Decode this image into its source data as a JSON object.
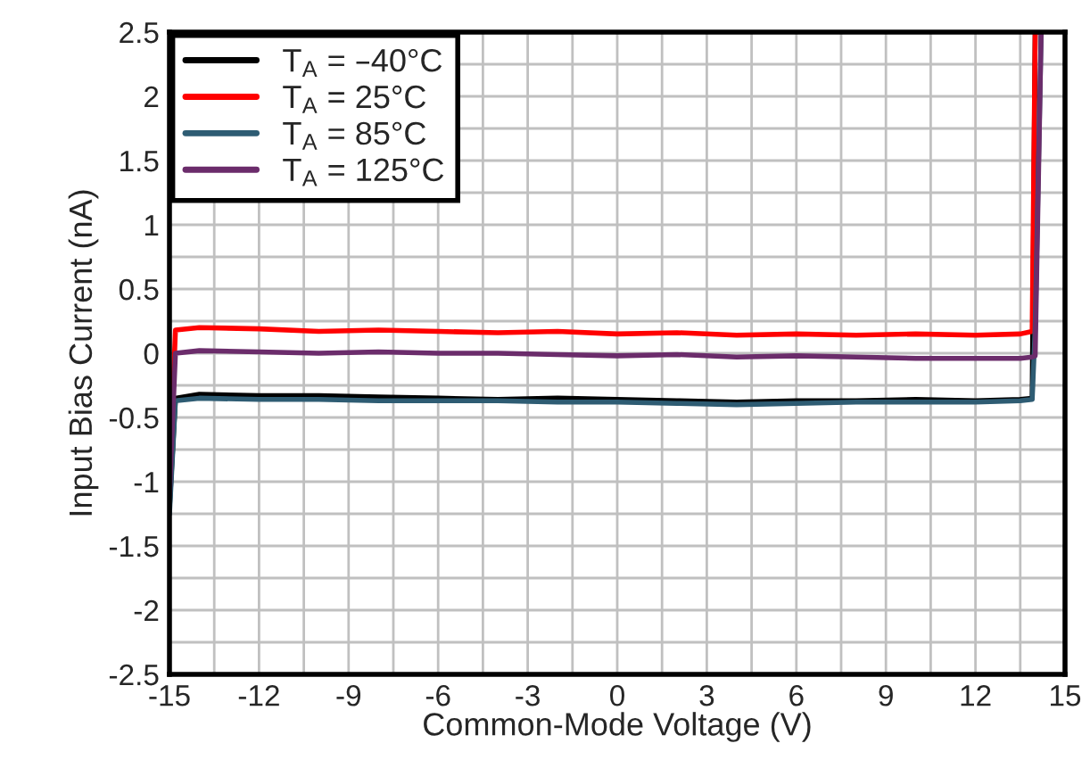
{
  "chart_data": {
    "type": "line",
    "xlabel": "Common-Mode Voltage (V)",
    "ylabel": "Input Bias Current (nA)",
    "x": [
      -15,
      -14.8,
      -14,
      -12,
      -10,
      -8,
      -6,
      -4,
      -2,
      0,
      2,
      4,
      6,
      8,
      10,
      12,
      13.5,
      13.9,
      14.0,
      14.2
    ],
    "series": [
      {
        "name": "T$_{A}$ = –40°C",
        "color": "#000000",
        "values": [
          -1.2,
          -0.35,
          -0.32,
          -0.33,
          -0.33,
          -0.34,
          -0.35,
          -0.36,
          -0.35,
          -0.36,
          -0.37,
          -0.38,
          -0.37,
          -0.37,
          -0.36,
          -0.37,
          -0.36,
          -0.35,
          2.5,
          2.5
        ]
      },
      {
        "name": "T$_{A}$ = 25°C",
        "color": "#ff0000",
        "values": [
          -1.0,
          0.18,
          0.2,
          0.19,
          0.17,
          0.18,
          0.17,
          0.16,
          0.17,
          0.15,
          0.16,
          0.14,
          0.15,
          0.14,
          0.15,
          0.14,
          0.15,
          0.17,
          2.5,
          2.5
        ]
      },
      {
        "name": "T$_{A}$ = 85°C",
        "color": "#2e5c73",
        "values": [
          -1.25,
          -0.37,
          -0.35,
          -0.36,
          -0.36,
          -0.37,
          -0.37,
          -0.37,
          -0.38,
          -0.38,
          -0.39,
          -0.4,
          -0.39,
          -0.38,
          -0.38,
          -0.38,
          -0.37,
          -0.36,
          0.2,
          2.5
        ]
      },
      {
        "name": "T$_{A}$ = 125°C",
        "color": "#6b2c6b",
        "values": [
          -1.1,
          0.0,
          0.02,
          0.01,
          0.0,
          0.01,
          0.0,
          0.0,
          -0.01,
          -0.02,
          -0.01,
          -0.03,
          -0.02,
          -0.03,
          -0.04,
          -0.04,
          -0.04,
          -0.03,
          -0.02,
          2.5
        ]
      }
    ],
    "xlim": [
      -15,
      15
    ],
    "ylim": [
      -2.5,
      2.5
    ],
    "xticks": [
      {
        "value": -15,
        "label": "-15"
      },
      {
        "value": -13.5,
        "label": null
      },
      {
        "value": -12,
        "label": "-12"
      },
      {
        "value": -10.5,
        "label": null
      },
      {
        "value": -9,
        "label": "-9"
      },
      {
        "value": -7.5,
        "label": null
      },
      {
        "value": -6,
        "label": "-6"
      },
      {
        "value": -4.5,
        "label": null
      },
      {
        "value": -3,
        "label": "-3"
      },
      {
        "value": -1.5,
        "label": null
      },
      0,
      {
        "value": 1.5,
        "label": null
      },
      3,
      {
        "value": 4.5,
        "label": null
      },
      6,
      {
        "value": 7.5,
        "label": null
      },
      9,
      {
        "value": 10.5,
        "label": null
      },
      12,
      {
        "value": 13.5,
        "label": null
      },
      15
    ],
    "yticks": [
      {
        "value": -2.5,
        "label": "-2.5"
      },
      {
        "value": -2.25,
        "label": null
      },
      {
        "value": -2,
        "label": "-2"
      },
      {
        "value": -1.75,
        "label": null
      },
      {
        "value": -1.5,
        "label": "-1.5"
      },
      {
        "value": -1.25,
        "label": null
      },
      {
        "value": -1,
        "label": "-1"
      },
      {
        "value": -0.75,
        "label": null
      },
      {
        "value": -0.5,
        "label": "-0.5"
      },
      {
        "value": -0.25,
        "label": null
      },
      0,
      {
        "value": 0.25,
        "label": null
      },
      0.5,
      {
        "value": 0.75,
        "label": null
      },
      1,
      {
        "value": 1.25,
        "label": null
      },
      1.5,
      {
        "value": 1.75,
        "label": null
      },
      2,
      {
        "value": 2.25,
        "label": null
      },
      2.5
    ],
    "grid": true,
    "legend": "top left",
    "marker": "none",
    "line_style": "solid"
  }
}
